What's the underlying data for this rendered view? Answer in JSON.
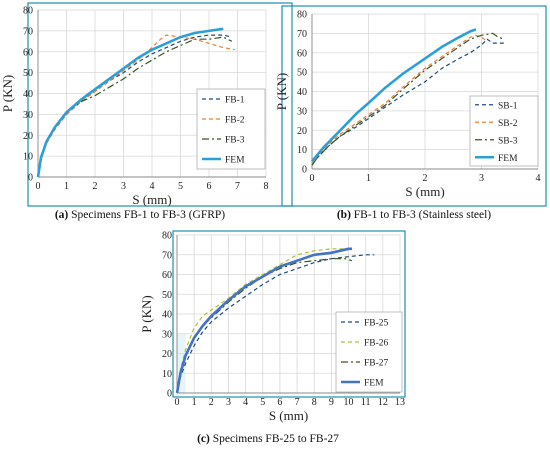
{
  "chart_data": [
    {
      "type": "line",
      "caption_prefix": "(a)",
      "caption_text": " Specimens FB-1 to FB-3 (GFRP)",
      "xlabel": "S (mm)",
      "ylabel": "P (KN)",
      "xlim": [
        0,
        8
      ],
      "ylim": [
        0,
        80
      ],
      "xticks": [
        0,
        1,
        2,
        3,
        4,
        5,
        6,
        7,
        8
      ],
      "yticks": [
        0,
        10,
        20,
        30,
        40,
        50,
        60,
        70,
        80
      ],
      "grid": true,
      "legend_position": "bottom-right",
      "series": [
        {
          "name": "FB-1",
          "color": "#1f4e79",
          "dash": "dashed",
          "x": [
            0,
            0.1,
            0.3,
            0.6,
            1.0,
            1.5,
            2.0,
            2.5,
            3.0,
            3.5,
            4.0,
            4.5,
            5.0,
            5.5,
            6.0,
            6.5,
            6.8
          ],
          "y": [
            0,
            10,
            17,
            23,
            30,
            36,
            41,
            46,
            50,
            55,
            59,
            62,
            65,
            67,
            68,
            68,
            67
          ]
        },
        {
          "name": "FB-2",
          "color": "#ed7d31",
          "dash": "dashed",
          "x": [
            0,
            0.1,
            0.3,
            0.6,
            1.0,
            1.5,
            2.0,
            2.5,
            3.0,
            3.5,
            4.0,
            4.3,
            4.5,
            5.0,
            5.5,
            6.0,
            6.5,
            6.9
          ],
          "y": [
            0,
            9,
            16,
            23,
            30,
            36,
            41,
            46,
            51,
            56,
            62,
            66,
            68,
            67,
            66,
            64,
            62,
            61
          ]
        },
        {
          "name": "FB-3",
          "color": "#375623",
          "dash": "dashdot",
          "x": [
            0,
            0.1,
            0.3,
            0.6,
            1.0,
            1.5,
            2.0,
            2.5,
            3.0,
            3.5,
            4.0,
            4.5,
            5.0,
            5.5,
            6.0,
            6.5,
            6.8
          ],
          "y": [
            0,
            10,
            17,
            24,
            31,
            36,
            39,
            43,
            47,
            52,
            56,
            60,
            63,
            66,
            66,
            67,
            65
          ]
        },
        {
          "name": "FEM",
          "color": "#2e9fd6",
          "dash": "solid",
          "x": [
            0,
            0.1,
            0.3,
            0.6,
            1.0,
            1.5,
            2.0,
            2.5,
            3.0,
            3.5,
            4.0,
            4.5,
            5.0,
            5.5,
            6.0,
            6.5
          ],
          "y": [
            0,
            9,
            17,
            24,
            31,
            37,
            42,
            47,
            52,
            57,
            61,
            64,
            67,
            69,
            70,
            71
          ]
        }
      ]
    },
    {
      "type": "line",
      "caption_prefix": "(b)",
      "caption_text": " FB-1 to FB-3 (Stainless steel)",
      "xlabel": "S (mm)",
      "ylabel": "P (KN)",
      "xlim": [
        0,
        4
      ],
      "ylim": [
        0,
        80
      ],
      "xticks": [
        0,
        1,
        2,
        3,
        4
      ],
      "yticks": [
        0,
        10,
        20,
        30,
        40,
        50,
        60,
        70,
        80
      ],
      "grid": true,
      "legend_position": "bottom-right",
      "series": [
        {
          "name": "SB-1",
          "color": "#1f4e79",
          "dash": "dashed",
          "x": [
            0,
            0.1,
            0.3,
            0.5,
            0.8,
            1.0,
            1.3,
            1.6,
            2.0,
            2.3,
            2.6,
            2.8,
            3.0,
            3.1,
            3.2,
            3.3,
            3.45
          ],
          "y": [
            2,
            6,
            12,
            17,
            22,
            26,
            32,
            38,
            45,
            52,
            57,
            60,
            64,
            67,
            65,
            65,
            65
          ]
        },
        {
          "name": "SB-2",
          "color": "#ed7d31",
          "dash": "dashed",
          "x": [
            0,
            0.1,
            0.3,
            0.5,
            0.8,
            1.0,
            1.3,
            1.6,
            2.0,
            2.3,
            2.6,
            2.8,
            2.9,
            3.0,
            3.1
          ],
          "y": [
            2,
            7,
            13,
            18,
            24,
            28,
            34,
            42,
            52,
            58,
            64,
            68,
            69,
            68,
            66
          ]
        },
        {
          "name": "SB-3",
          "color": "#375623",
          "dash": "dashdot",
          "x": [
            0,
            0.1,
            0.3,
            0.5,
            0.8,
            1.0,
            1.3,
            1.6,
            2.0,
            2.3,
            2.6,
            2.8,
            3.0,
            3.2,
            3.3,
            3.4
          ],
          "y": [
            2,
            6,
            12,
            17,
            23,
            27,
            33,
            41,
            51,
            57,
            63,
            67,
            69,
            70,
            68,
            67
          ]
        },
        {
          "name": "FEM",
          "color": "#2e9fd6",
          "dash": "solid",
          "x": [
            0,
            0.2,
            0.5,
            0.8,
            1.0,
            1.3,
            1.6,
            2.0,
            2.3,
            2.6,
            2.8,
            2.9
          ],
          "y": [
            4,
            11,
            20,
            29,
            34,
            42,
            49,
            57,
            63,
            68,
            71,
            72
          ]
        }
      ]
    },
    {
      "type": "line",
      "caption_prefix": "(c)",
      "caption_text": " Specimens FB-25 to FB-27",
      "xlabel": "S (mm)",
      "ylabel": "P (KN)",
      "xlim": [
        0,
        13
      ],
      "ylim": [
        0,
        80
      ],
      "xticks": [
        0,
        1,
        2,
        3,
        4,
        5,
        6,
        7,
        8,
        9,
        10,
        11,
        12,
        13
      ],
      "yticks": [
        0,
        10,
        20,
        30,
        40,
        50,
        60,
        70,
        80
      ],
      "grid": true,
      "legend_position": "middle-right",
      "series": [
        {
          "name": "FB-25",
          "color": "#1f4e79",
          "dash": "dashed",
          "x": [
            0,
            0.2,
            0.5,
            1.0,
            1.5,
            2.0,
            3.0,
            4.0,
            5.0,
            6.0,
            7.0,
            8.0,
            9.0,
            10.0,
            11.0,
            11.5
          ],
          "y": [
            0,
            8,
            15,
            24,
            31,
            36,
            43,
            49,
            55,
            60,
            63,
            66,
            68,
            69,
            70,
            70
          ]
        },
        {
          "name": "FB-26",
          "color": "#a9c23f",
          "dash": "dashed",
          "x": [
            0,
            0.2,
            0.5,
            1.0,
            1.5,
            2.0,
            3.0,
            4.0,
            5.0,
            6.0,
            7.0,
            8.0,
            9.0,
            10.0
          ],
          "y": [
            0,
            12,
            22,
            33,
            39,
            42,
            48,
            55,
            60,
            65,
            70,
            72,
            73,
            73
          ]
        },
        {
          "name": "FB-27",
          "color": "#375623",
          "dash": "dashdot",
          "x": [
            0,
            0.2,
            0.5,
            1.0,
            1.5,
            2.0,
            3.0,
            4.0,
            5.0,
            6.0,
            7.0,
            8.0,
            9.0,
            9.8,
            10.2
          ],
          "y": [
            0,
            9,
            18,
            28,
            34,
            38,
            46,
            53,
            59,
            63,
            66,
            67,
            68,
            68,
            67
          ]
        },
        {
          "name": "FEM",
          "color": "#4472c4",
          "dash": "solid",
          "x": [
            0,
            0.2,
            0.5,
            1.0,
            1.5,
            2.0,
            3.0,
            4.0,
            5.0,
            6.0,
            7.0,
            8.0,
            9.0,
            10.0,
            10.2
          ],
          "y": [
            0,
            10,
            19,
            28,
            34,
            39,
            47,
            54,
            59,
            64,
            67,
            70,
            71,
            73,
            73
          ]
        }
      ]
    }
  ]
}
